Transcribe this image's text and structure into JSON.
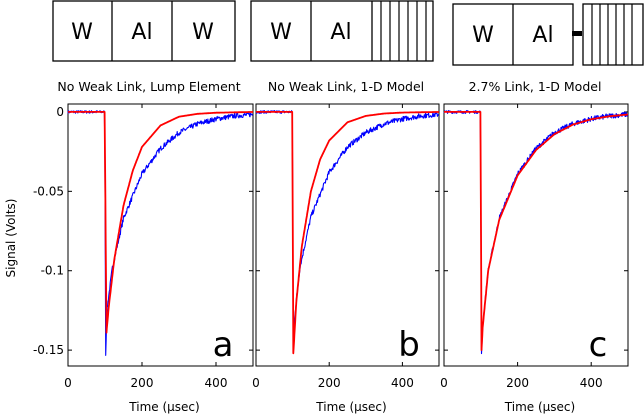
{
  "diagrams": [
    {
      "blocks": [
        "W",
        "Al",
        "W"
      ],
      "tail": "none"
    },
    {
      "blocks": [
        "W",
        "Al"
      ],
      "tail": "stripes"
    },
    {
      "blocks": [
        "W",
        "Al"
      ],
      "tail": "link-stripes"
    }
  ],
  "chart_data": {
    "type": "line",
    "ylabel": "Signal (Volts)",
    "xlabel": "Time (μsec)",
    "xlim": [
      0,
      500
    ],
    "ylim": [
      -0.16,
      0.005
    ],
    "xticks": [
      0,
      200,
      400
    ],
    "xtick_labels": [
      "0",
      "200",
      "400"
    ],
    "yticks": [
      0,
      -0.05,
      -0.1,
      -0.15
    ],
    "ytick_labels": [
      "0",
      "-0.05",
      "-0.1",
      "-0.15"
    ],
    "colors": {
      "measured": "#0000ff",
      "model": "#ff0000"
    },
    "panels": [
      {
        "letter": "a",
        "title": "No Weak Link, Lump Element",
        "series": [
          {
            "name": "measured",
            "x": [
              0,
              99,
              102,
              105,
              120,
              150,
              200,
              250,
              300,
              350,
              400,
              450,
              500
            ],
            "y": [
              0,
              0,
              -0.153,
              -0.125,
              -0.098,
              -0.067,
              -0.039,
              -0.023,
              -0.013,
              -0.0075,
              -0.0044,
              -0.0025,
              -0.0015
            ]
          },
          {
            "name": "model",
            "x": [
              0,
              99,
              104,
              110,
              125,
              150,
              175,
              200,
              250,
              300,
              350,
              400,
              500
            ],
            "y": [
              0,
              0,
              -0.139,
              -0.123,
              -0.093,
              -0.059,
              -0.037,
              -0.022,
              -0.0085,
              -0.003,
              -0.0012,
              -0.0005,
              0
            ]
          }
        ]
      },
      {
        "letter": "b",
        "title": "No Weak Link, 1-D Model",
        "series": [
          {
            "name": "measured",
            "x": [
              0,
              99,
              102,
              105,
              120,
              150,
              200,
              250,
              300,
              350,
              400,
              450,
              500
            ],
            "y": [
              0,
              0,
              -0.152,
              -0.13,
              -0.098,
              -0.066,
              -0.038,
              -0.022,
              -0.013,
              -0.0075,
              -0.0044,
              -0.0025,
              -0.0015
            ]
          },
          {
            "name": "model",
            "x": [
              0,
              99,
              102,
              110,
              125,
              150,
              175,
              200,
              250,
              300,
              350,
              400,
              500
            ],
            "y": [
              0,
              0,
              -0.152,
              -0.12,
              -0.085,
              -0.05,
              -0.03,
              -0.018,
              -0.0065,
              -0.0025,
              -0.001,
              -0.0004,
              0
            ]
          }
        ]
      },
      {
        "letter": "c",
        "title": "2.7% Link, 1-D Model",
        "series": [
          {
            "name": "measured",
            "x": [
              0,
              99,
              102,
              105,
              120,
              150,
              200,
              250,
              300,
              350,
              400,
              450,
              500
            ],
            "y": [
              0,
              0,
              -0.152,
              -0.135,
              -0.1,
              -0.067,
              -0.039,
              -0.023,
              -0.013,
              -0.0075,
              -0.0044,
              -0.0025,
              -0.0015
            ]
          },
          {
            "name": "model",
            "x": [
              0,
              99,
              102,
              105,
              120,
              150,
              200,
              250,
              300,
              350,
              400,
              450,
              500
            ],
            "y": [
              0,
              0,
              -0.15,
              -0.136,
              -0.1,
              -0.068,
              -0.04,
              -0.024,
              -0.014,
              -0.008,
              -0.0046,
              -0.0027,
              -0.0016
            ]
          }
        ]
      }
    ]
  }
}
